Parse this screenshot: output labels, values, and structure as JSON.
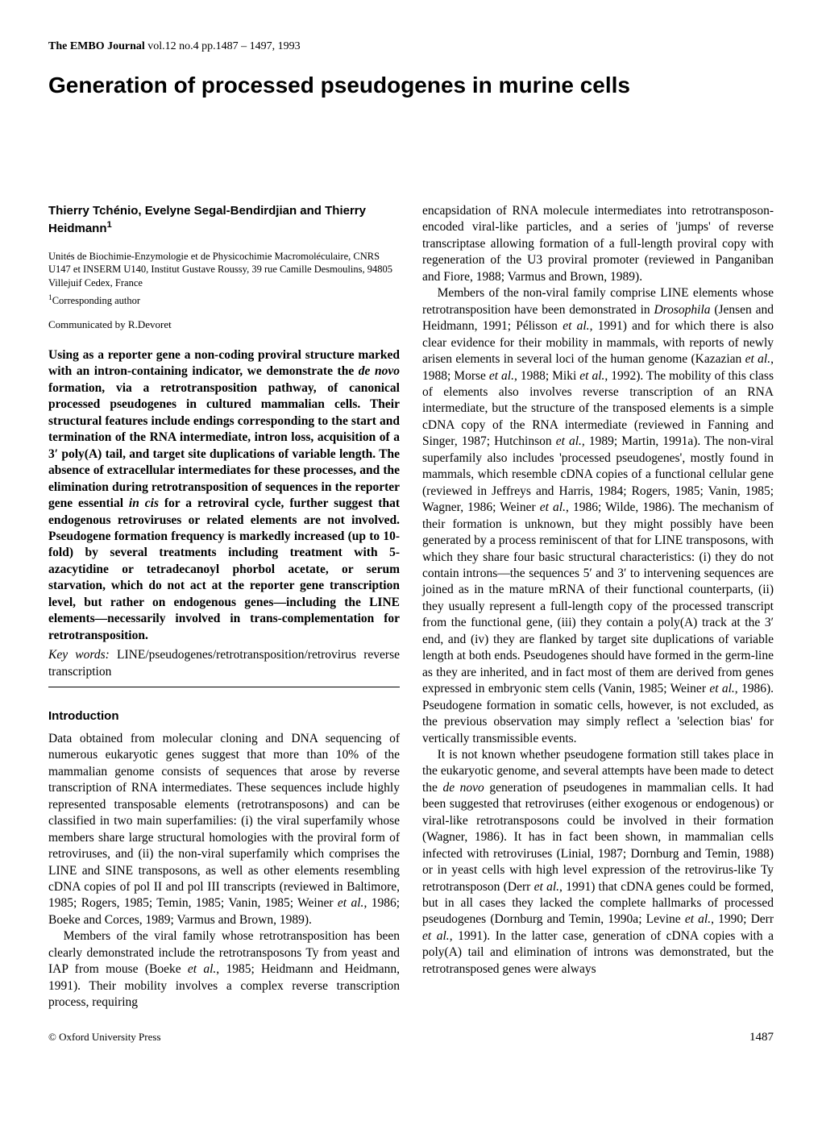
{
  "journal": {
    "name": "The EMBO Journal",
    "citation": "vol.12 no.4 pp.1487 – 1497, 1993"
  },
  "title": "Generation of processed pseudogenes in murine cells",
  "authors": "Thierry Tchénio, Evelyne Segal-Bendirdjian and Thierry Heidmann",
  "author_sup": "1",
  "affiliation": "Unités de Biochimie-Enzymologie et de Physicochimie Macromoléculaire, CNRS U147 et INSERM U140, Institut Gustave Roussy, 39 rue Camille Desmoulins, 94805 Villejuif Cedex, France",
  "corresponding": "Corresponding author",
  "corresponding_sup": "1",
  "communicated": "Communicated by R.Devoret",
  "abstract": {
    "p1a": "Using as a reporter gene a non-coding proviral structure marked with an intron-containing indicator, we demonstrate the ",
    "p1b_italic": "de novo",
    "p1c": " formation, via a retrotransposition pathway, of canonical processed pseudogenes in cultured mammalian cells. Their structural features include endings corresponding to the start and termination of the RNA intermediate, intron loss, acquisition of a 3′ poly(A) tail, and target site duplications of variable length. The absence of extracellular intermediates for these processes, and the elimination during retrotransposition of sequences in the reporter gene essential ",
    "p1d_italic": "in cis",
    "p1e": " for a retroviral cycle, further suggest that endogenous retroviruses or related elements are not involved. Pseudogene formation frequency is markedly increased (up to 10-fold) by several treatments including treatment with 5-azacytidine or tetradecanoyl phorbol acetate, or serum starvation, which do not act at the reporter gene transcription level, but rather on endogenous genes—including the LINE elements—necessarily involved in trans-complementation for retrotransposition."
  },
  "keywords": {
    "label": "Key words:",
    "text": " LINE/pseudogenes/retrotransposition/retrovirus reverse transcription"
  },
  "introduction_heading": "Introduction",
  "intro": {
    "p1": "Data obtained from molecular cloning and DNA sequencing of numerous eukaryotic genes suggest that more than 10% of the mammalian genome consists of sequences that arose by reverse transcription of RNA intermediates. These sequences include highly represented transposable elements (retrotransposons) and can be classified in two main superfamilies: (i) the viral superfamily whose members share large structural homologies with the proviral form of retroviruses, and (ii) the non-viral superfamily which comprises the LINE and SINE transposons, as well as other elements resembling cDNA copies of pol II and pol III transcripts (reviewed in Baltimore, 1985; Rogers, 1985; Temin, 1985; Vanin, 1985; Weiner ",
    "p1_et_al": "et al.",
    "p1b": ", 1986; Boeke and Corces, 1989; Varmus and Brown, 1989).",
    "p2a": "Members of the viral family whose retrotransposition has been clearly demonstrated include the retrotransposons Ty from yeast and IAP from mouse (Boeke ",
    "p2_et_al": "et al.",
    "p2b": ", 1985; Heidmann and Heidmann, 1991). Their mobility involves a complex reverse transcription process, requiring"
  },
  "col2": {
    "p1a": "encapsidation of RNA molecule intermediates into retrotransposon-encoded viral-like particles, and a series of 'jumps' of reverse transcriptase allowing formation of a full-length proviral copy with regeneration of the U3 proviral promoter (reviewed in Panganiban and Fiore, 1988; Varmus and Brown, 1989).",
    "p2a": "Members of the non-viral family comprise LINE elements whose retrotransposition have been demonstrated in ",
    "p2_drosophila": "Drosophila",
    "p2b": " (Jensen and Heidmann, 1991; Pélisson ",
    "p2_et_al1": "et al.",
    "p2c": ", 1991) and for which there is also clear evidence for their mobility in mammals, with reports of newly arisen elements in several loci of the human genome (Kazazian ",
    "p2_et_al2": "et al.",
    "p2d": ", 1988; Morse ",
    "p2_et_al3": "et al.",
    "p2e": ", 1988; Miki ",
    "p2_et_al4": "et al.",
    "p2f": ", 1992). The mobility of this class of elements also involves reverse transcription of an RNA intermediate, but the structure of the transposed elements is a simple cDNA copy of the RNA intermediate (reviewed in Fanning and Singer, 1987; Hutchinson ",
    "p2_et_al5": "et al.",
    "p2g": ", 1989; Martin, 1991a). The non-viral superfamily also includes 'processed pseudogenes', mostly found in mammals, which resemble cDNA copies of a functional cellular gene (reviewed in Jeffreys and Harris, 1984; Rogers, 1985; Vanin, 1985; Wagner, 1986; Weiner ",
    "p2_et_al6": "et al.",
    "p2h": ", 1986; Wilde, 1986). The mechanism of their formation is unknown, but they might possibly have been generated by a process reminiscent of that for LINE transposons, with which they share four basic structural characteristics: (i) they do not contain introns—the sequences 5′ and 3′ to intervening sequences are joined as in the mature mRNA of their functional counterparts, (ii) they usually represent a full-length copy of the processed transcript from the functional gene, (iii) they contain a poly(A) track at the 3′ end, and (iv) they are flanked by target site duplications of variable length at both ends. Pseudogenes should have formed in the germ-line as they are inherited, and in fact most of them are derived from genes expressed in embryonic stem cells (Vanin, 1985; Weiner ",
    "p2_et_al7": "et al.",
    "p2i": ", 1986). Pseudogene formation in somatic cells, however, is not excluded, as the previous observation may simply reflect a 'selection bias' for vertically transmissible events.",
    "p3a": "It is not known whether pseudogene formation still takes place in the eukaryotic genome, and several attempts have been made to detect the ",
    "p3_denovo": "de novo",
    "p3b": " generation of pseudogenes in mammalian cells. It had been suggested that retroviruses (either exogenous or endogenous) or viral-like retrotransposons could be involved in their formation (Wagner, 1986). It has in fact been shown, in mammalian cells infected with retroviruses (Linial, 1987; Dornburg and Temin, 1988) or in yeast cells with high level expression of the retrovirus-like Ty retrotransposon (Derr ",
    "p3_et_al1": "et al.",
    "p3c": ", 1991) that cDNA genes could be formed, but in all cases they lacked the complete hallmarks of processed pseudogenes (Dornburg and Temin, 1990a; Levine ",
    "p3_et_al2": "et al.",
    "p3d": ", 1990; Derr ",
    "p3_et_al3": "et al.",
    "p3e": ", 1991). In the latter case, generation of cDNA copies with a poly(A) tail and elimination of introns was demonstrated, but the retrotransposed genes were always"
  },
  "footer": {
    "copyright": "© Oxford University Press",
    "page": "1487"
  }
}
